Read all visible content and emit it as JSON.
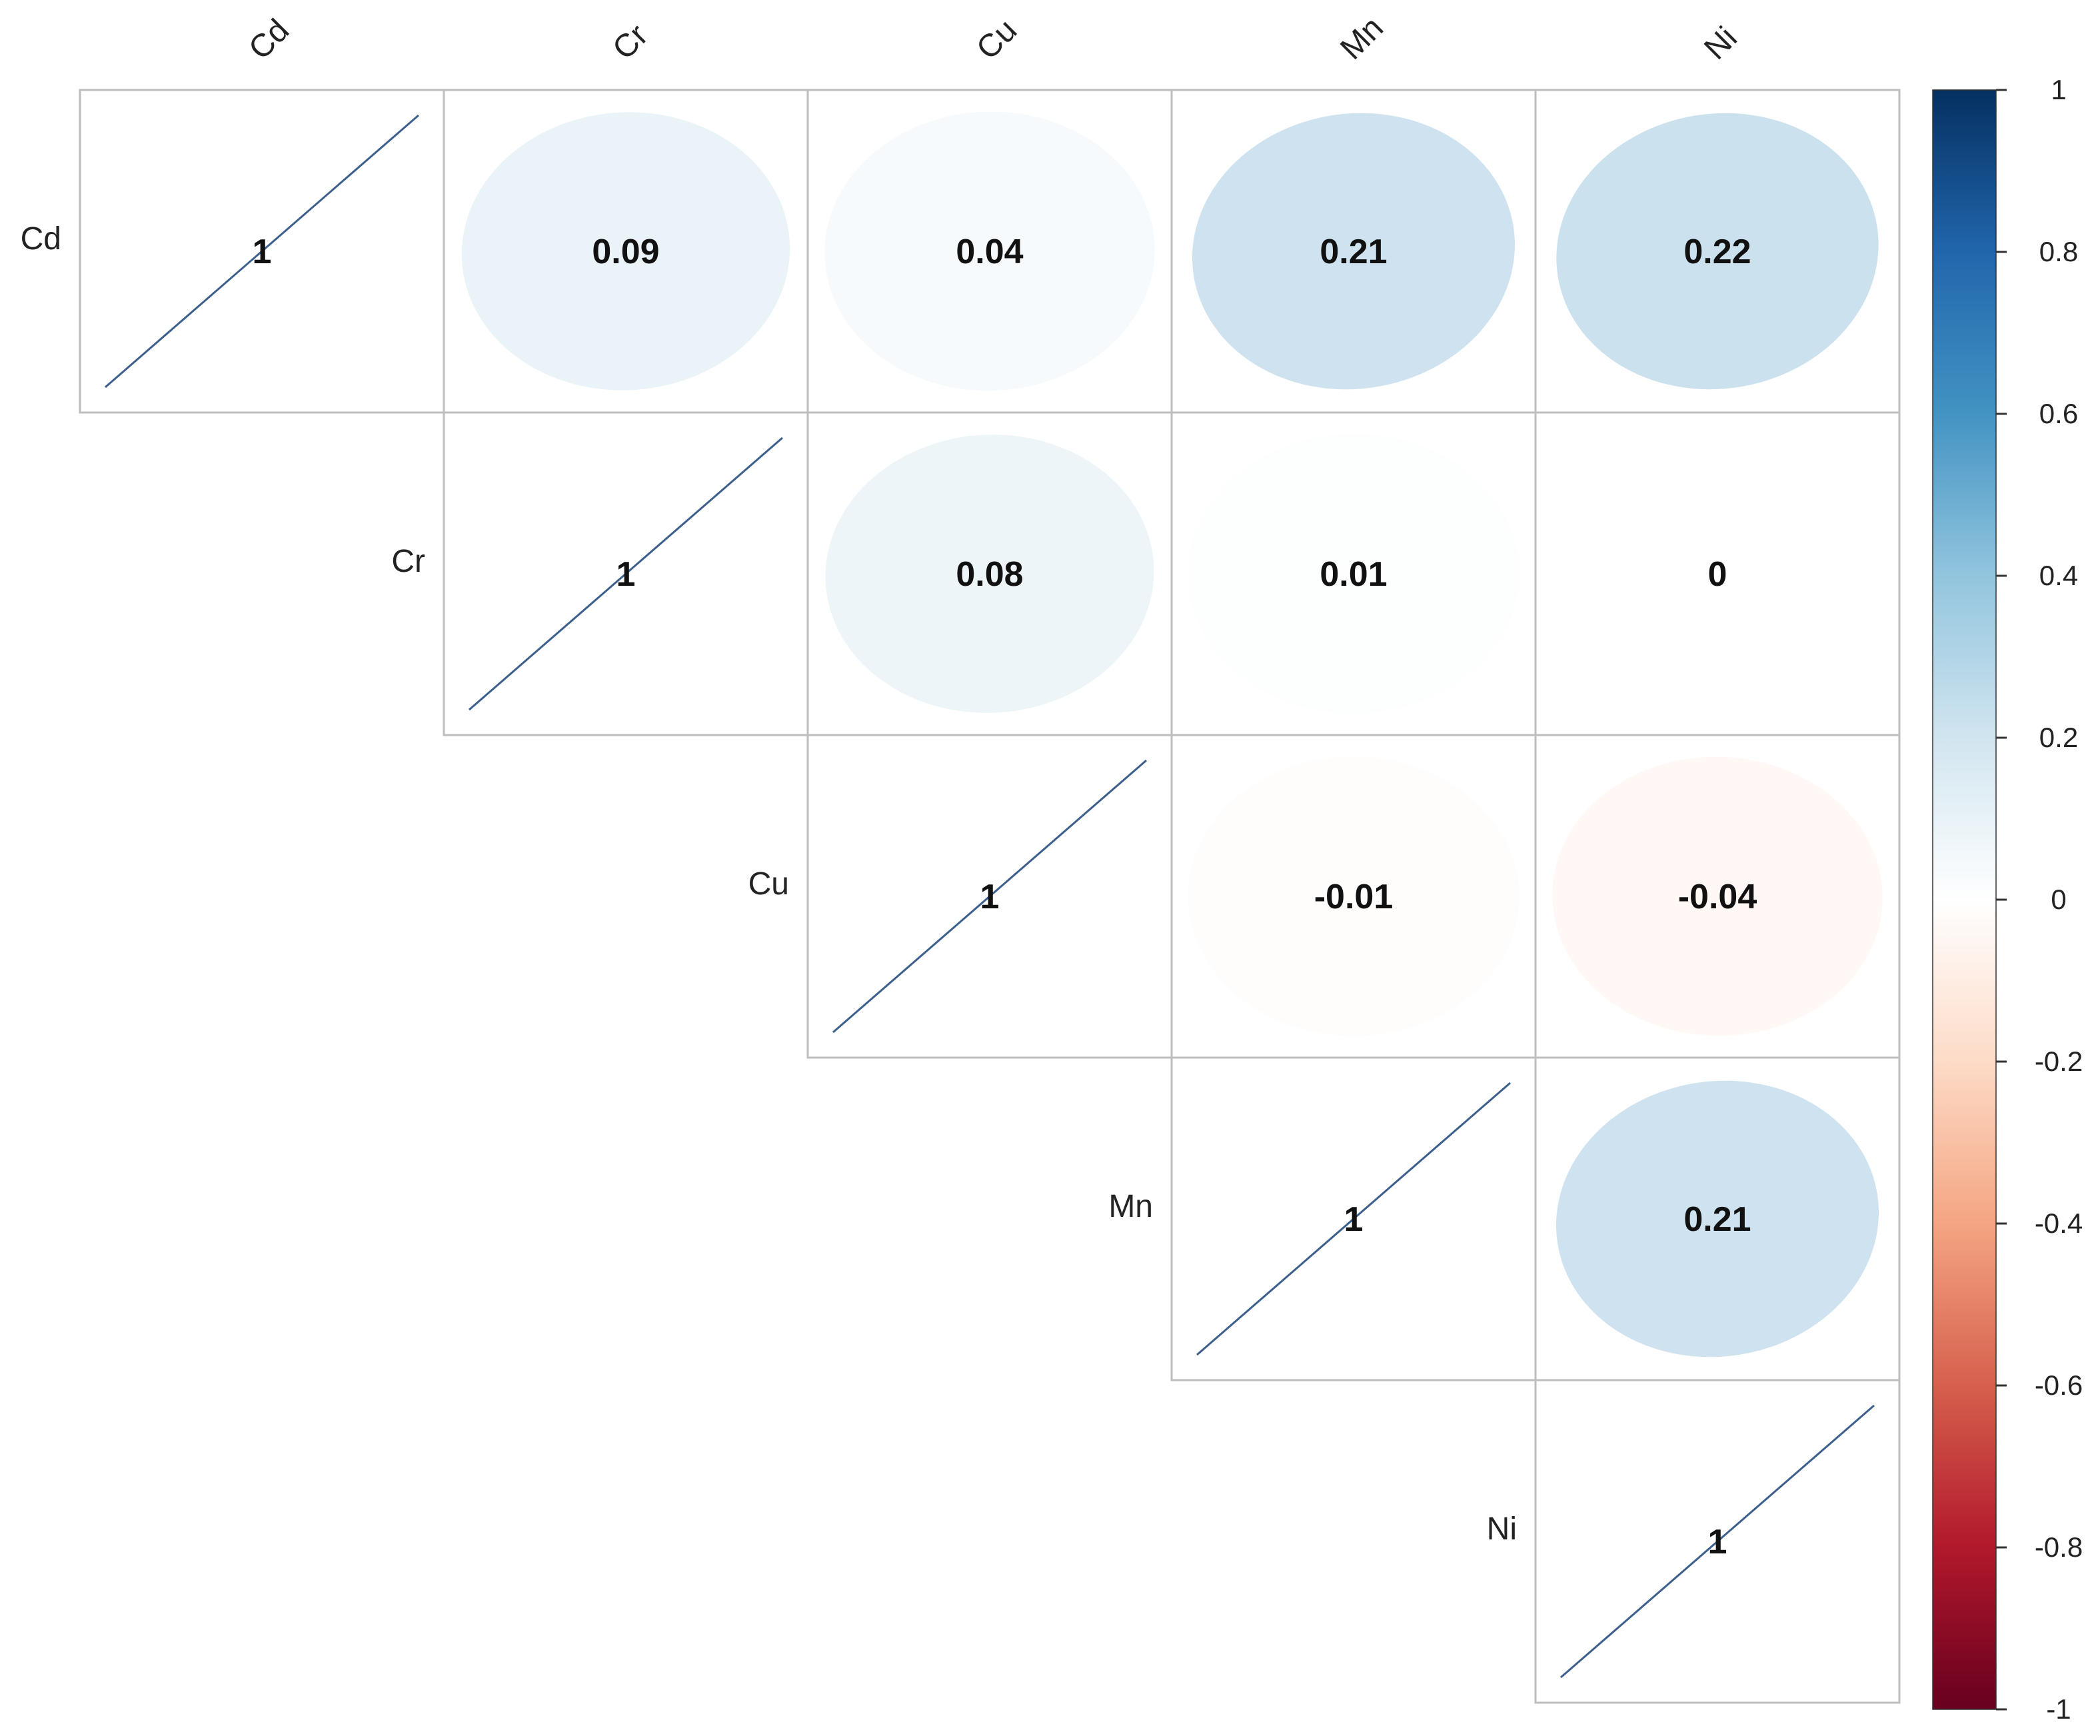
{
  "chart_data": {
    "type": "heatmap",
    "variables": [
      "Cd",
      "Cr",
      "Cu",
      "Mn",
      "Ni"
    ],
    "matrix": [
      [
        1,
        0.09,
        0.04,
        0.21,
        0.22
      ],
      [
        0.09,
        1,
        0.08,
        0.01,
        0
      ],
      [
        0.04,
        0.08,
        1,
        -0.01,
        -0.04
      ],
      [
        0.21,
        0.01,
        -0.01,
        1,
        0.21
      ],
      [
        0.22,
        0,
        -0.04,
        0.21,
        1
      ]
    ],
    "shown_triangle": "upper",
    "diagonal_labels": [
      "1",
      "1",
      "1",
      "1",
      "1"
    ],
    "value_labels": [
      {
        "row": 0,
        "col": 1,
        "text": "0.09"
      },
      {
        "row": 0,
        "col": 2,
        "text": "0.04"
      },
      {
        "row": 0,
        "col": 3,
        "text": "0.21"
      },
      {
        "row": 0,
        "col": 4,
        "text": "0.22"
      },
      {
        "row": 1,
        "col": 2,
        "text": "0.08"
      },
      {
        "row": 1,
        "col": 3,
        "text": "0.01"
      },
      {
        "row": 1,
        "col": 4,
        "text": "0"
      },
      {
        "row": 2,
        "col": 3,
        "text": "-0.01"
      },
      {
        "row": 2,
        "col": 4,
        "text": "-0.04"
      },
      {
        "row": 3,
        "col": 4,
        "text": "0.21"
      }
    ],
    "colorbar": {
      "range": [
        -1,
        1
      ],
      "ticks": [
        "1",
        "0.8",
        "0.6",
        "0.4",
        "0.2",
        "0",
        "-0.2",
        "-0.4",
        "-0.6",
        "-0.8",
        "-1"
      ],
      "colors": [
        "#67001F",
        "#B2182B",
        "#D6604D",
        "#F4A582",
        "#FDDBC7",
        "#FFFFFF",
        "#D1E5F0",
        "#92C5DE",
        "#4393C3",
        "#2166AC",
        "#053061"
      ]
    },
    "colors": {
      "grid": "#BEBEBE",
      "diagonal_line": "#3C5F8C",
      "text": "#111111"
    }
  }
}
